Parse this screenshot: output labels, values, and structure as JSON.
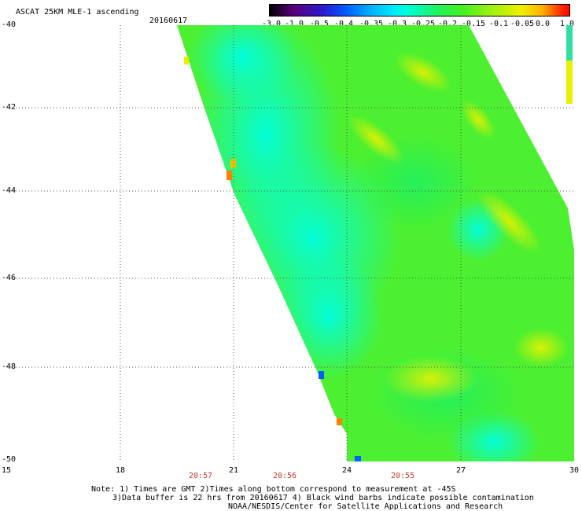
{
  "header": {
    "title": "ASCAT 25KM MLE-1 ascending",
    "date": "20160617"
  },
  "colorbar": {
    "labels": [
      "-3.0",
      "-1.0",
      "-0.5",
      "-0.4",
      "-0.35",
      "-0.3",
      "-0.25",
      "-0.2",
      "-0.15",
      "-0.1",
      "-0.05",
      "0.0",
      "1.0"
    ]
  },
  "axes": {
    "lat_labels": [
      "-40",
      "-42",
      "-44",
      "-46",
      "-48",
      "-50"
    ],
    "lon_labels": [
      "15",
      "18",
      "21",
      "24",
      "27",
      "30"
    ],
    "time_labels": [
      "20:57",
      "20:56",
      "20:55"
    ]
  },
  "footer": {
    "line1": "Note: 1) Times are GMT 2)Times along bottom correspond to measurement at -45S",
    "line2": "3)Data buffer is 22 hrs from 20160617 4) Black wind barbs indicate possible contamination",
    "line3": "NOAA/NESDIS/Center for Satellite Applications and Research"
  },
  "colors": {
    "field_low": "#00ffd8",
    "field_mid": "#44f020",
    "field_high": "#f0f000",
    "grid": "#555555"
  }
}
